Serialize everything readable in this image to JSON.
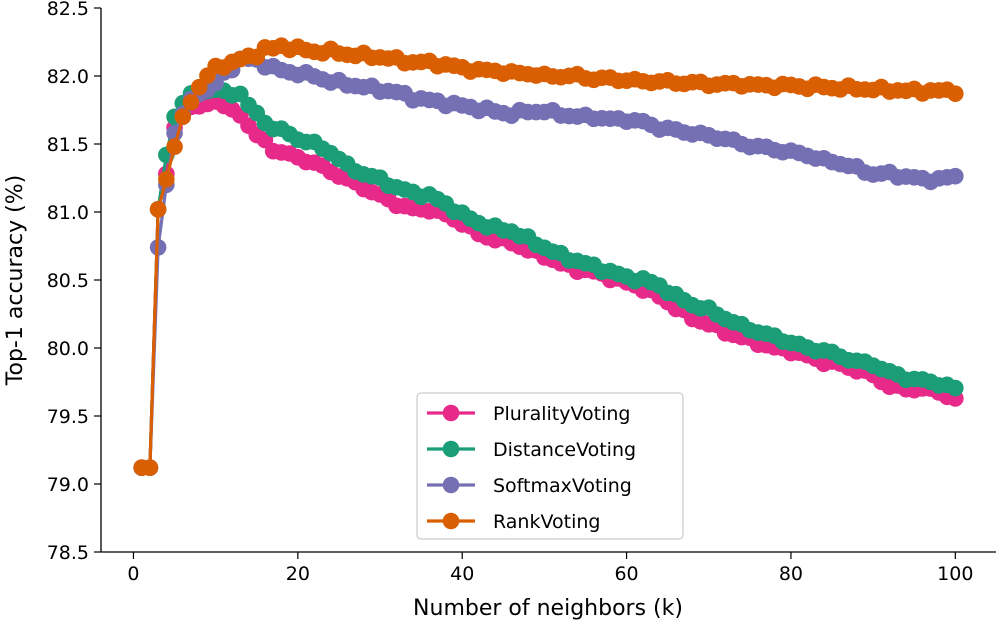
{
  "chart_data": {
    "type": "line",
    "title": "",
    "xlabel": "Number of neighbors (k)",
    "ylabel": "Top-1 accuracy (%)",
    "xlim": [
      -3.95,
      104.95
    ],
    "ylim": [
      78.5,
      82.5
    ],
    "xticks": [
      0,
      20,
      40,
      60,
      80,
      100
    ],
    "xtick_labels": [
      "0",
      "20",
      "40",
      "60",
      "80",
      "100"
    ],
    "yticks": [
      78.5,
      79.0,
      79.5,
      80.0,
      80.5,
      81.0,
      81.5,
      82.0,
      82.5
    ],
    "ytick_labels": [
      "78.5",
      "79.0",
      "79.5",
      "80.0",
      "80.5",
      "81.0",
      "81.5",
      "82.0",
      "82.5"
    ],
    "grid": false,
    "legend_position": "lower-center",
    "x_range": [
      1,
      100
    ],
    "series": [
      {
        "name": "PluralityVoting",
        "color": "#e7298a",
        "anchors": [
          [
            1,
            79.12
          ],
          [
            2,
            79.12
          ],
          [
            3,
            81.02
          ],
          [
            4,
            81.28
          ],
          [
            5,
            81.62
          ],
          [
            6,
            81.72
          ],
          [
            7,
            81.78
          ],
          [
            8,
            81.76
          ],
          [
            9,
            81.8
          ],
          [
            10,
            81.82
          ],
          [
            11,
            81.78
          ],
          [
            12,
            81.74
          ],
          [
            13,
            81.72
          ],
          [
            14,
            81.64
          ],
          [
            15,
            81.56
          ],
          [
            16,
            81.52
          ],
          [
            17,
            81.46
          ],
          [
            18,
            81.44
          ],
          [
            20,
            81.4
          ],
          [
            22,
            81.36
          ],
          [
            24,
            81.3
          ],
          [
            26,
            81.24
          ],
          [
            28,
            81.18
          ],
          [
            30,
            81.12
          ],
          [
            32,
            81.06
          ],
          [
            34,
            81.02
          ],
          [
            36,
            81.02
          ],
          [
            38,
            80.98
          ],
          [
            40,
            80.92
          ],
          [
            42,
            80.84
          ],
          [
            44,
            80.8
          ],
          [
            46,
            80.78
          ],
          [
            48,
            80.72
          ],
          [
            50,
            80.68
          ],
          [
            52,
            80.62
          ],
          [
            54,
            80.58
          ],
          [
            56,
            80.56
          ],
          [
            58,
            80.52
          ],
          [
            60,
            80.48
          ],
          [
            62,
            80.44
          ],
          [
            64,
            80.38
          ],
          [
            66,
            80.3
          ],
          [
            68,
            80.22
          ],
          [
            70,
            80.18
          ],
          [
            72,
            80.12
          ],
          [
            74,
            80.08
          ],
          [
            76,
            80.04
          ],
          [
            78,
            80.0
          ],
          [
            80,
            79.98
          ],
          [
            82,
            79.94
          ],
          [
            84,
            79.9
          ],
          [
            86,
            79.88
          ],
          [
            88,
            79.84
          ],
          [
            90,
            79.8
          ],
          [
            92,
            79.72
          ],
          [
            94,
            79.7
          ],
          [
            96,
            79.7
          ],
          [
            98,
            79.68
          ],
          [
            100,
            79.62
          ]
        ]
      },
      {
        "name": "DistanceVoting",
        "color": "#1b9e77",
        "anchors": [
          [
            1,
            79.12
          ],
          [
            2,
            79.12
          ],
          [
            3,
            81.02
          ],
          [
            4,
            81.42
          ],
          [
            5,
            81.7
          ],
          [
            6,
            81.8
          ],
          [
            7,
            81.86
          ],
          [
            8,
            81.88
          ],
          [
            9,
            81.9
          ],
          [
            10,
            81.9
          ],
          [
            11,
            81.88
          ],
          [
            12,
            81.86
          ],
          [
            13,
            81.88
          ],
          [
            14,
            81.78
          ],
          [
            15,
            81.72
          ],
          [
            16,
            81.66
          ],
          [
            17,
            81.62
          ],
          [
            18,
            81.6
          ],
          [
            20,
            81.54
          ],
          [
            22,
            81.5
          ],
          [
            24,
            81.44
          ],
          [
            26,
            81.34
          ],
          [
            28,
            81.28
          ],
          [
            30,
            81.24
          ],
          [
            32,
            81.18
          ],
          [
            34,
            81.14
          ],
          [
            36,
            81.12
          ],
          [
            38,
            81.06
          ],
          [
            40,
            80.98
          ],
          [
            42,
            80.92
          ],
          [
            44,
            80.88
          ],
          [
            46,
            80.86
          ],
          [
            48,
            80.8
          ],
          [
            50,
            80.74
          ],
          [
            52,
            80.68
          ],
          [
            54,
            80.64
          ],
          [
            56,
            80.6
          ],
          [
            58,
            80.56
          ],
          [
            60,
            80.52
          ],
          [
            62,
            80.5
          ],
          [
            64,
            80.46
          ],
          [
            66,
            80.38
          ],
          [
            68,
            80.32
          ],
          [
            70,
            80.28
          ],
          [
            72,
            80.22
          ],
          [
            74,
            80.16
          ],
          [
            76,
            80.12
          ],
          [
            78,
            80.08
          ],
          [
            80,
            80.04
          ],
          [
            82,
            80.0
          ],
          [
            84,
            79.98
          ],
          [
            86,
            79.94
          ],
          [
            88,
            79.9
          ],
          [
            90,
            79.88
          ],
          [
            92,
            79.82
          ],
          [
            94,
            79.78
          ],
          [
            96,
            79.76
          ],
          [
            98,
            79.74
          ],
          [
            100,
            79.7
          ]
        ]
      },
      {
        "name": "SoftmaxVoting",
        "color": "#7570b3",
        "anchors": [
          [
            1,
            79.12
          ],
          [
            2,
            79.12
          ],
          [
            3,
            80.74
          ],
          [
            4,
            81.2
          ],
          [
            5,
            81.58
          ],
          [
            6,
            81.72
          ],
          [
            7,
            81.82
          ],
          [
            8,
            81.88
          ],
          [
            9,
            81.9
          ],
          [
            10,
            81.94
          ],
          [
            11,
            82.02
          ],
          [
            12,
            82.06
          ],
          [
            13,
            82.12
          ],
          [
            14,
            82.12
          ],
          [
            15,
            82.12
          ],
          [
            16,
            82.08
          ],
          [
            17,
            82.06
          ],
          [
            18,
            82.04
          ],
          [
            20,
            82.02
          ],
          [
            22,
            82.0
          ],
          [
            24,
            81.96
          ],
          [
            26,
            81.94
          ],
          [
            28,
            81.92
          ],
          [
            30,
            81.9
          ],
          [
            32,
            81.88
          ],
          [
            34,
            81.84
          ],
          [
            36,
            81.82
          ],
          [
            38,
            81.8
          ],
          [
            40,
            81.78
          ],
          [
            42,
            81.76
          ],
          [
            44,
            81.74
          ],
          [
            46,
            81.72
          ],
          [
            48,
            81.74
          ],
          [
            50,
            81.74
          ],
          [
            52,
            81.72
          ],
          [
            54,
            81.7
          ],
          [
            56,
            81.7
          ],
          [
            58,
            81.68
          ],
          [
            60,
            81.68
          ],
          [
            62,
            81.66
          ],
          [
            64,
            81.62
          ],
          [
            66,
            81.6
          ],
          [
            68,
            81.58
          ],
          [
            70,
            81.56
          ],
          [
            72,
            81.54
          ],
          [
            74,
            81.5
          ],
          [
            76,
            81.48
          ],
          [
            78,
            81.46
          ],
          [
            80,
            81.44
          ],
          [
            82,
            81.42
          ],
          [
            84,
            81.38
          ],
          [
            86,
            81.36
          ],
          [
            88,
            81.32
          ],
          [
            90,
            81.28
          ],
          [
            92,
            81.28
          ],
          [
            94,
            81.26
          ],
          [
            96,
            81.24
          ],
          [
            98,
            81.24
          ],
          [
            100,
            81.26
          ]
        ]
      },
      {
        "name": "RankVoting",
        "color": "#d95f02",
        "anchors": [
          [
            1,
            79.12
          ],
          [
            2,
            79.12
          ],
          [
            3,
            81.02
          ],
          [
            4,
            81.24
          ],
          [
            5,
            81.48
          ],
          [
            6,
            81.7
          ],
          [
            7,
            81.82
          ],
          [
            8,
            81.92
          ],
          [
            9,
            82.0
          ],
          [
            10,
            82.06
          ],
          [
            11,
            82.08
          ],
          [
            12,
            82.1
          ],
          [
            13,
            82.12
          ],
          [
            14,
            82.14
          ],
          [
            15,
            82.16
          ],
          [
            16,
            82.2
          ],
          [
            17,
            82.2
          ],
          [
            18,
            82.22
          ],
          [
            20,
            82.2
          ],
          [
            22,
            82.18
          ],
          [
            24,
            82.18
          ],
          [
            26,
            82.16
          ],
          [
            28,
            82.15
          ],
          [
            30,
            82.14
          ],
          [
            32,
            82.12
          ],
          [
            34,
            82.1
          ],
          [
            36,
            82.1
          ],
          [
            38,
            82.08
          ],
          [
            40,
            82.06
          ],
          [
            42,
            82.04
          ],
          [
            44,
            82.04
          ],
          [
            46,
            82.02
          ],
          [
            48,
            82.02
          ],
          [
            50,
            82.0
          ],
          [
            52,
            82.0
          ],
          [
            54,
            82.0
          ],
          [
            56,
            81.98
          ],
          [
            58,
            81.98
          ],
          [
            60,
            81.97
          ],
          [
            62,
            81.96
          ],
          [
            64,
            81.96
          ],
          [
            66,
            81.95
          ],
          [
            68,
            81.95
          ],
          [
            70,
            81.94
          ],
          [
            72,
            81.94
          ],
          [
            74,
            81.94
          ],
          [
            76,
            81.93
          ],
          [
            78,
            81.93
          ],
          [
            80,
            81.93
          ],
          [
            82,
            81.92
          ],
          [
            84,
            81.92
          ],
          [
            86,
            81.91
          ],
          [
            88,
            81.91
          ],
          [
            90,
            81.9
          ],
          [
            92,
            81.9
          ],
          [
            94,
            81.89
          ],
          [
            96,
            81.89
          ],
          [
            98,
            81.89
          ],
          [
            100,
            81.89
          ]
        ]
      }
    ]
  }
}
